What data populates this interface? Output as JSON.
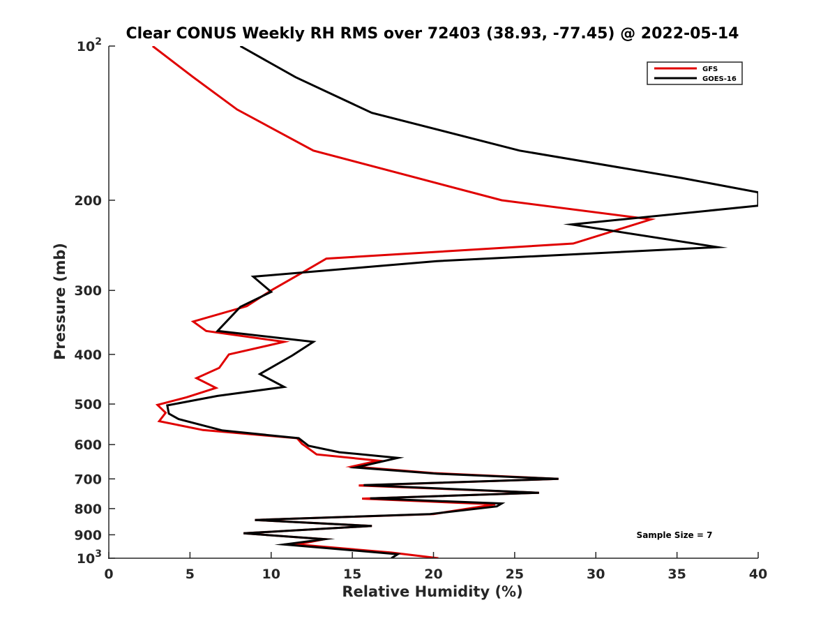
{
  "chart_data": {
    "type": "line",
    "title": "Clear CONUS Weekly RH RMS over 72403 (38.93, -77.45) @ 2022-05-14",
    "xlabel": "Relative Humidity (%)",
    "ylabel": "Pressure (mb)",
    "xlim": [
      0,
      40
    ],
    "ylim": [
      100,
      1000
    ],
    "y_scale": "log",
    "y_reversed": true,
    "x_ticks": [
      "0",
      "5",
      "10",
      "15",
      "20",
      "25",
      "30",
      "35",
      "40"
    ],
    "y_ticks": [
      {
        "value": 100,
        "base": "10",
        "exp": "2"
      },
      {
        "value": 200,
        "label": "200"
      },
      {
        "value": 300,
        "label": "300"
      },
      {
        "value": 400,
        "label": "400"
      },
      {
        "value": 500,
        "label": "500"
      },
      {
        "value": 600,
        "label": "600"
      },
      {
        "value": 700,
        "label": "700"
      },
      {
        "value": 800,
        "label": "800"
      },
      {
        "value": 900,
        "label": "900"
      },
      {
        "value": 1000,
        "base": "10",
        "exp": "3"
      }
    ],
    "legend_position": "top-right",
    "grid": false,
    "annotation": "Sample Size = 7",
    "series": [
      {
        "name": "GFS",
        "color": "#e00000",
        "points": [
          [
            2.7,
            100
          ],
          [
            5.2,
            115
          ],
          [
            7.9,
            133
          ],
          [
            12.6,
            160
          ],
          [
            24.2,
            200
          ],
          [
            33.4,
            218
          ],
          [
            28.6,
            243
          ],
          [
            13.4,
            260
          ],
          [
            12.0,
            276
          ],
          [
            10.0,
            300
          ],
          [
            8.5,
            322
          ],
          [
            5.2,
            345
          ],
          [
            6.0,
            360
          ],
          [
            10.8,
            378
          ],
          [
            7.4,
            400
          ],
          [
            6.8,
            425
          ],
          [
            5.4,
            445
          ],
          [
            6.6,
            465
          ],
          [
            4.8,
            485
          ],
          [
            3.0,
            502
          ],
          [
            3.5,
            520
          ],
          [
            3.1,
            540
          ],
          [
            5.8,
            562
          ],
          [
            11.6,
            583
          ],
          [
            11.9,
            598
          ],
          [
            12.1,
            604
          ],
          [
            12.8,
            627
          ],
          [
            16.6,
            645
          ],
          [
            15.0,
            662
          ],
          [
            20.0,
            682
          ],
          [
            27.7,
            700
          ],
          [
            15.4,
            721
          ],
          [
            26.5,
            745
          ],
          [
            15.6,
            765
          ],
          [
            23.8,
            785
          ],
          [
            20.0,
            820
          ],
          [
            9.0,
            842
          ],
          [
            16.2,
            865
          ],
          [
            8.3,
            894
          ],
          [
            13.3,
            918
          ],
          [
            11.6,
            940
          ],
          [
            17.4,
            975
          ],
          [
            20.3,
            1000
          ]
        ]
      },
      {
        "name": "GOES-16",
        "color": "#000000",
        "points": [
          [
            8.1,
            100
          ],
          [
            11.5,
            115
          ],
          [
            16.2,
            135
          ],
          [
            25.3,
            160
          ],
          [
            35.3,
            181
          ],
          [
            40.0,
            193
          ],
          [
            40.0,
            205
          ],
          [
            28.5,
            223
          ],
          [
            37.5,
            247
          ],
          [
            20.2,
            263
          ],
          [
            8.9,
            282
          ],
          [
            10.0,
            302
          ],
          [
            8.1,
            323
          ],
          [
            6.7,
            360
          ],
          [
            12.6,
            378
          ],
          [
            11.3,
            402
          ],
          [
            9.3,
            437
          ],
          [
            10.8,
            463
          ],
          [
            6.7,
            482
          ],
          [
            3.6,
            503
          ],
          [
            3.7,
            522
          ],
          [
            4.3,
            535
          ],
          [
            7.0,
            563
          ],
          [
            11.7,
            583
          ],
          [
            12.3,
            603
          ],
          [
            14.2,
            621
          ],
          [
            17.8,
            637
          ],
          [
            15.2,
            665
          ],
          [
            20.2,
            684
          ],
          [
            27.7,
            700
          ],
          [
            15.7,
            720
          ],
          [
            26.5,
            745
          ],
          [
            16.1,
            764
          ],
          [
            24.2,
            782
          ],
          [
            23.9,
            792
          ],
          [
            19.8,
            820
          ],
          [
            9.0,
            842
          ],
          [
            16.2,
            865
          ],
          [
            8.3,
            894
          ],
          [
            13.3,
            918
          ],
          [
            10.8,
            940
          ],
          [
            17.8,
            982
          ],
          [
            17.4,
            1000
          ]
        ]
      }
    ]
  }
}
